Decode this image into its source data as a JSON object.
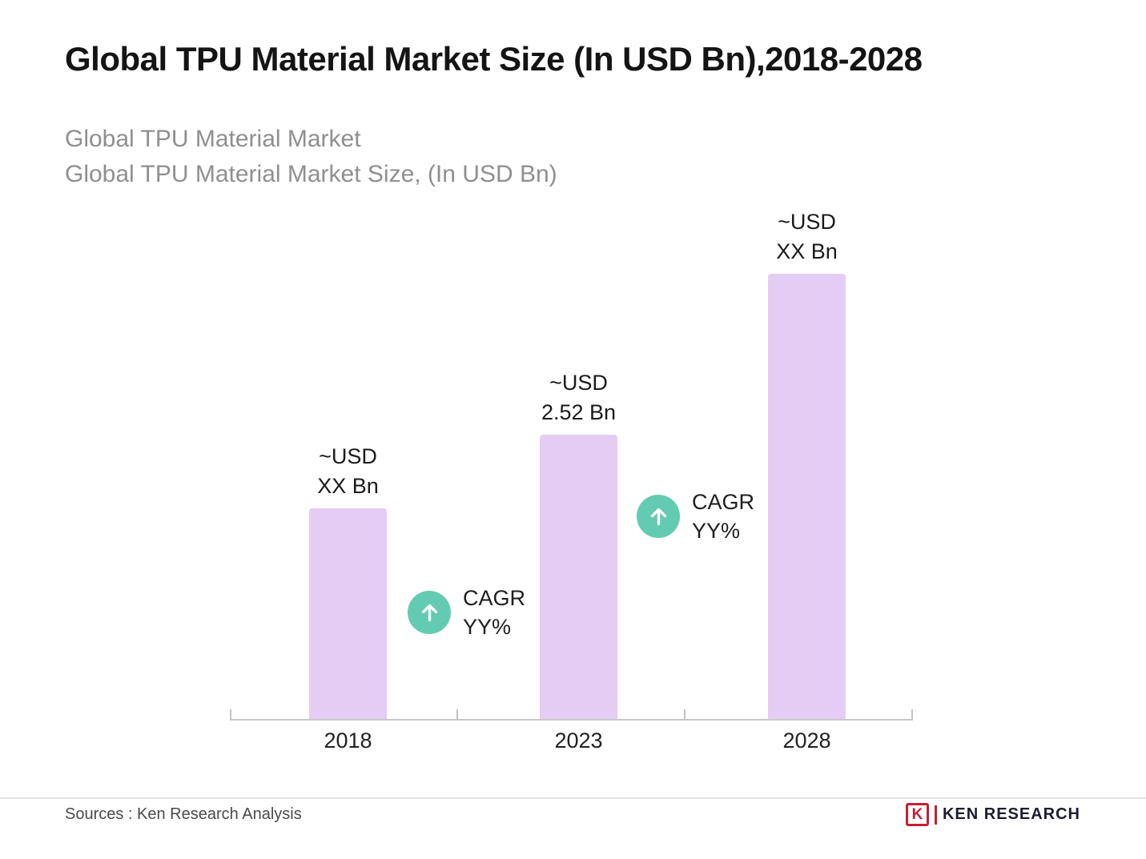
{
  "page": {
    "title": "Global TPU Material Market Size (In USD Bn),2018-2028",
    "subtitles": [
      "Global TPU Material Market",
      "Global TPU Material Market Size, (In USD Bn)"
    ]
  },
  "chart_data": {
    "type": "bar",
    "title": "Global TPU Material Market Size (In USD Bn),2018-2028",
    "categories": [
      "2018",
      "2023",
      "2028"
    ],
    "values": [
      1.87,
      2.52,
      3.95
    ],
    "bar_labels": [
      [
        "~USD",
        "XX Bn"
      ],
      [
        "~USD",
        "2.52 Bn"
      ],
      [
        "~USD",
        "XX Bn"
      ]
    ],
    "ylim": [
      0,
      4.6
    ],
    "xlabel": "",
    "ylabel": "",
    "grid": false,
    "legend": "none",
    "annotations": [
      {
        "lines": [
          "CAGR",
          "YY%"
        ],
        "between": [
          "2018",
          "2023"
        ],
        "icon": "up-arrow-icon"
      },
      {
        "lines": [
          "CAGR",
          "YY%"
        ],
        "between": [
          "2023",
          "2028"
        ],
        "icon": "up-arrow-icon"
      }
    ]
  },
  "colors": {
    "bar": "#E5CCF5",
    "accent": "#63CBB1",
    "logo_red": "#C42033"
  },
  "footer": {
    "source": "Sources : Ken Research Analysis",
    "logo_letter": "K",
    "logo_text": "KEN RESEARCH"
  }
}
